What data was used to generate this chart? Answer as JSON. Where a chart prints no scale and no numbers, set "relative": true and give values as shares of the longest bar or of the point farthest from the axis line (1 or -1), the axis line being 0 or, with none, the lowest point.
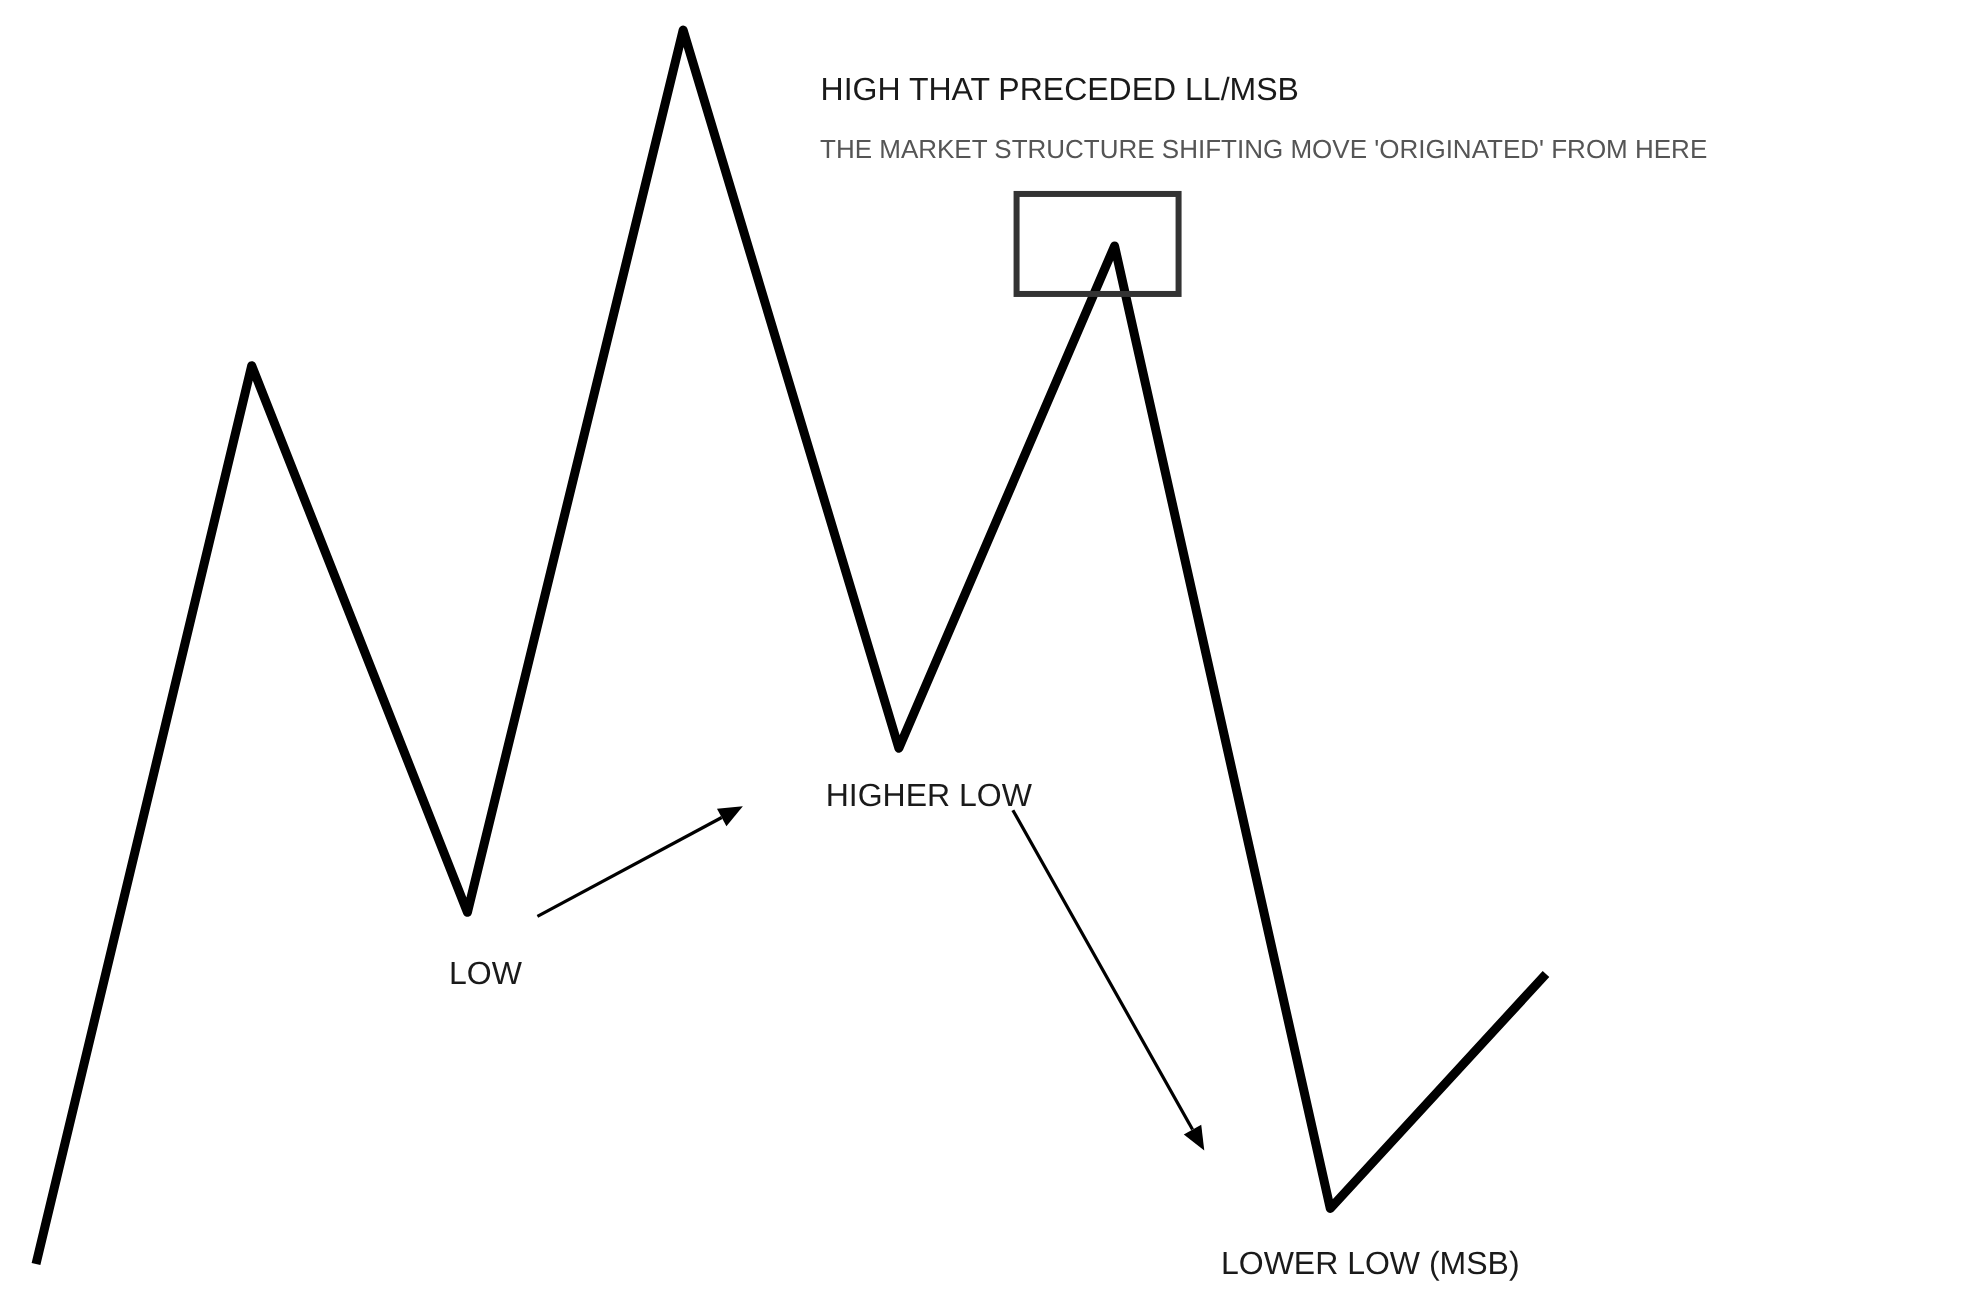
{
  "chart_data": {
    "type": "line",
    "relative": true,
    "categories": [
      null,
      null,
      null,
      null,
      null,
      null,
      null,
      null
    ],
    "series": [
      {
        "color": "#000000",
        "values": [
          0,
          0.728,
          0.285,
          1,
          0.418,
          0.825,
          0.045,
          0.235
        ]
      }
    ],
    "annotations": [
      "HIGH THAT PRECEDED LL/MSB",
      "THE MARKET STRUCTURE SHIFTING MOVE 'ORIGINATED' FROM HERE",
      "LOW",
      "HIGHER LOW",
      "LOWER LOW (MSB)"
    ],
    "marker": "none",
    "line_style": "solid"
  }
}
